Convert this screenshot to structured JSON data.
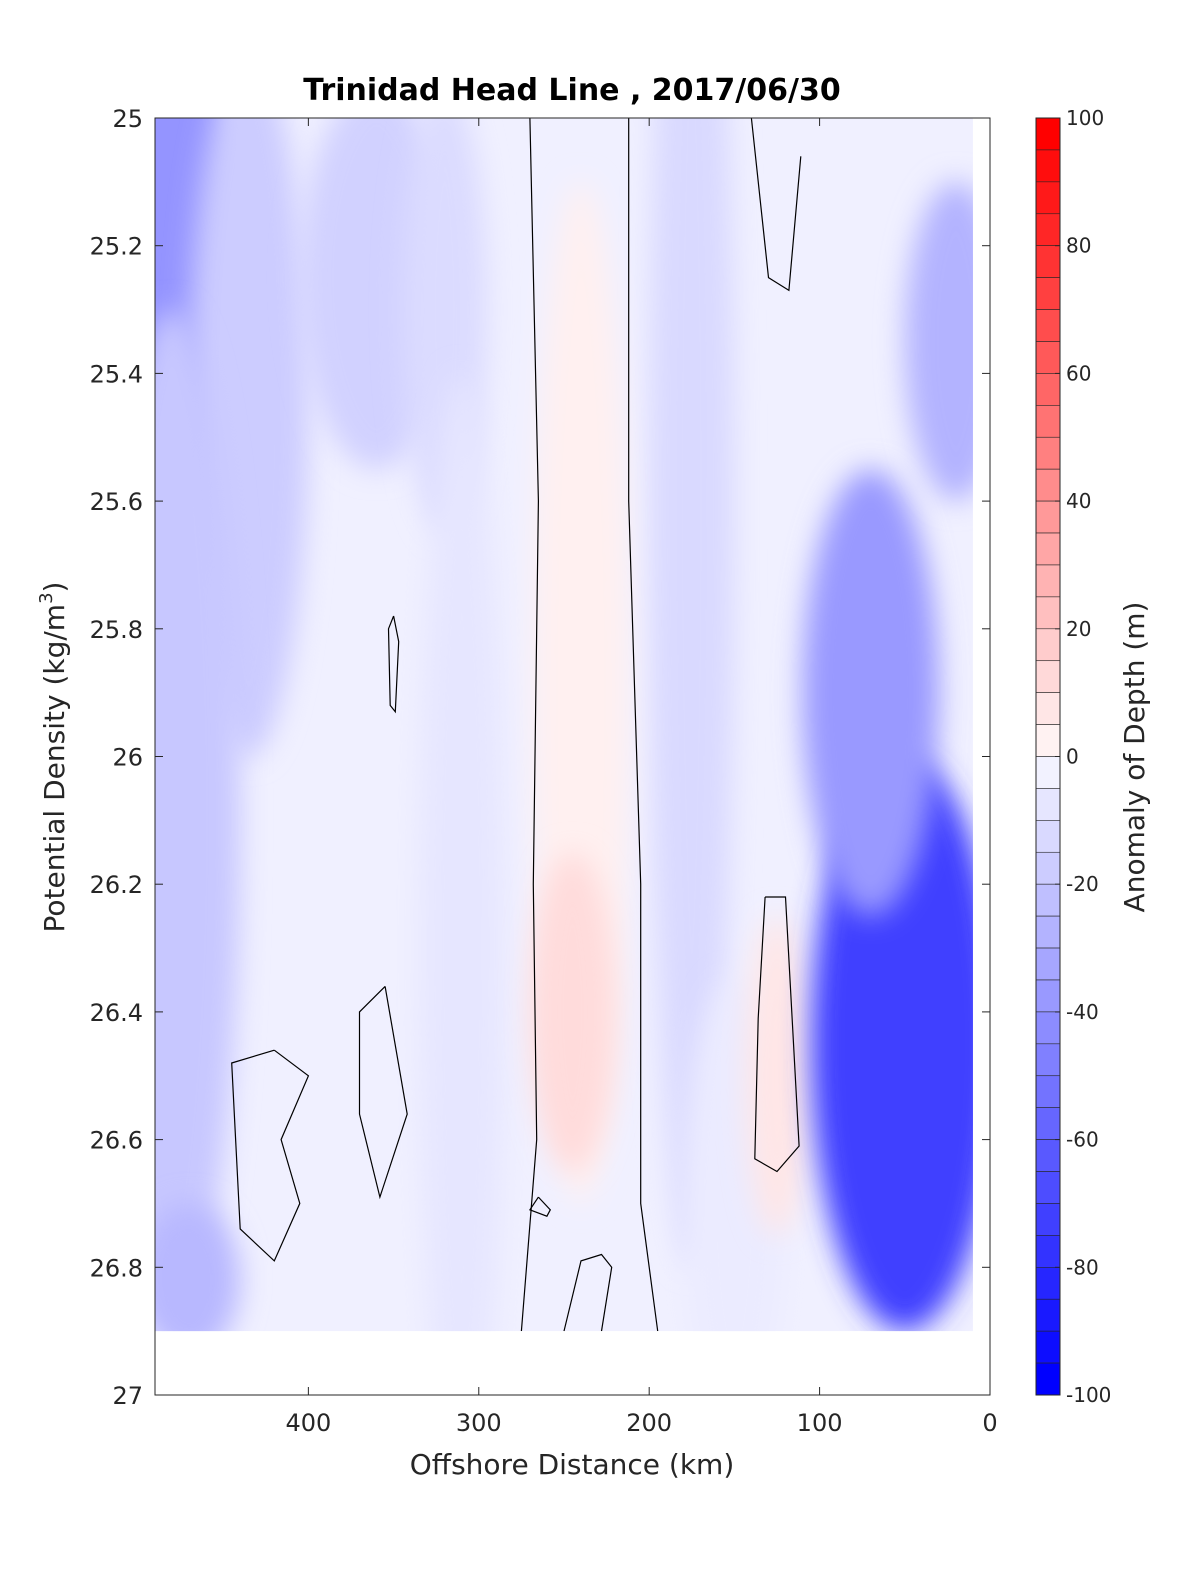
{
  "chart_data": {
    "type": "contourf",
    "title": "Trinidad Head Line , 2017/06/30",
    "xlabel": "Offshore Distance (km)",
    "ylabel": "Potential Density (kg/m",
    "ylabel_sup": "3",
    "ylabel_close": ")",
    "xlim": [
      490,
      0
    ],
    "ylim": [
      25,
      27
    ],
    "y_reversed": true,
    "x_ticks": [
      400,
      300,
      200,
      100,
      0
    ],
    "y_ticks": [
      25,
      25.2,
      25.4,
      25.6,
      25.8,
      26,
      26.2,
      26.4,
      26.6,
      26.8,
      27
    ],
    "y_tick_labels": [
      "25",
      "25.2",
      "25.4",
      "25.6",
      "25.8",
      "26",
      "26.2",
      "26.4",
      "26.6",
      "26.8",
      "27"
    ],
    "data_extent": {
      "x": [
        490,
        10
      ],
      "y": [
        25,
        26.9
      ]
    },
    "colorbar": {
      "label": "Anomaly of Depth (m)",
      "range": [
        -100,
        100
      ],
      "ticks": [
        100,
        80,
        60,
        40,
        20,
        0,
        -20,
        -40,
        -60,
        -80,
        -100
      ],
      "step": 5,
      "colors": {
        "negative": "#0000ff",
        "zero": "#ffffff",
        "positive": "#ff0000"
      }
    },
    "anomaly_fields": [
      {
        "cx": 475,
        "cy": 25.3,
        "rx": 45,
        "ry": 0.45,
        "value": -42
      },
      {
        "cx": 435,
        "cy": 25.45,
        "rx": 35,
        "ry": 0.55,
        "value": -20
      },
      {
        "cx": 360,
        "cy": 25.25,
        "rx": 45,
        "ry": 0.3,
        "value": -18
      },
      {
        "cx": 480,
        "cy": 26.1,
        "rx": 40,
        "ry": 0.8,
        "value": -22
      },
      {
        "cx": 470,
        "cy": 26.82,
        "rx": 30,
        "ry": 0.12,
        "value": -28
      },
      {
        "cx": 320,
        "cy": 25.3,
        "rx": 25,
        "ry": 0.35,
        "value": -14
      },
      {
        "cx": 310,
        "cy": 26.3,
        "rx": 25,
        "ry": 0.9,
        "value": -10
      },
      {
        "cx": 175,
        "cy": 25.6,
        "rx": 25,
        "ry": 1.2,
        "value": -15
      },
      {
        "cx": 150,
        "cy": 26.7,
        "rx": 30,
        "ry": 0.35,
        "value": -8
      },
      {
        "cx": 240,
        "cy": 25.9,
        "rx": 28,
        "ry": 0.8,
        "value": 6
      },
      {
        "cx": 245,
        "cy": 26.4,
        "rx": 25,
        "ry": 0.25,
        "value": 14
      },
      {
        "cx": 125,
        "cy": 26.5,
        "rx": 18,
        "ry": 0.25,
        "value": 10
      },
      {
        "cx": 50,
        "cy": 26.45,
        "rx": 55,
        "ry": 0.45,
        "value": -75
      },
      {
        "cx": 70,
        "cy": 25.9,
        "rx": 40,
        "ry": 0.35,
        "value": -40
      },
      {
        "cx": 20,
        "cy": 25.35,
        "rx": 30,
        "ry": 0.25,
        "value": -30
      }
    ],
    "zero_contours": [
      [
        [
          270,
          25
        ],
        [
          265,
          25.6
        ],
        [
          268,
          26.2
        ],
        [
          266,
          26.6
        ],
        [
          275,
          26.9
        ]
      ],
      [
        [
          212,
          25
        ],
        [
          212,
          25.6
        ],
        [
          205,
          26.2
        ],
        [
          205,
          26.7
        ],
        [
          195,
          26.9
        ]
      ],
      [
        [
          140,
          25
        ],
        [
          130,
          25.25
        ],
        [
          118,
          25.27
        ],
        [
          111,
          25.06
        ]
      ],
      [
        [
          350,
          25.78
        ],
        [
          353,
          25.8
        ],
        [
          352,
          25.92
        ],
        [
          349,
          25.93
        ],
        [
          347,
          25.82
        ],
        [
          350,
          25.78
        ]
      ],
      [
        [
          355,
          26.36
        ],
        [
          342,
          26.56
        ],
        [
          358,
          26.69
        ],
        [
          370,
          26.56
        ],
        [
          370,
          26.4
        ],
        [
          355,
          26.36
        ]
      ],
      [
        [
          420,
          26.46
        ],
        [
          445,
          26.48
        ],
        [
          440,
          26.74
        ],
        [
          420,
          26.79
        ],
        [
          405,
          26.7
        ],
        [
          416,
          26.6
        ],
        [
          400,
          26.5
        ],
        [
          420,
          26.46
        ]
      ],
      [
        [
          265,
          26.69
        ],
        [
          270,
          26.71
        ],
        [
          260,
          26.72
        ],
        [
          258,
          26.71
        ],
        [
          265,
          26.69
        ]
      ],
      [
        [
          250,
          26.9
        ],
        [
          240,
          26.79
        ],
        [
          228,
          26.78
        ],
        [
          222,
          26.8
        ],
        [
          228,
          26.9
        ]
      ],
      [
        [
          132,
          26.22
        ],
        [
          120,
          26.22
        ],
        [
          112,
          26.61
        ],
        [
          125,
          26.65
        ],
        [
          138,
          26.63
        ],
        [
          136,
          26.41
        ],
        [
          132,
          26.22
        ]
      ]
    ]
  }
}
